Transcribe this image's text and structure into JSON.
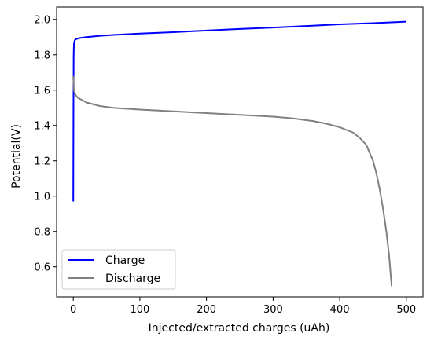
{
  "chart_data": {
    "type": "line",
    "title": "",
    "xlabel": "Injected/extracted charges (uAh)",
    "ylabel": "Potential(V)",
    "xlim": [
      -25,
      525
    ],
    "ylim": [
      0.43,
      2.07
    ],
    "xticks": [
      0,
      100,
      200,
      300,
      400,
      500
    ],
    "yticks": [
      0.6,
      0.8,
      1.0,
      1.2,
      1.4,
      1.6,
      1.8,
      2.0
    ],
    "xtick_labels": [
      "0",
      "100",
      "200",
      "300",
      "400",
      "500"
    ],
    "ytick_labels": [
      "0.6",
      "0.8",
      "1.0",
      "1.2",
      "1.4",
      "1.6",
      "1.8",
      "2.0"
    ],
    "grid": false,
    "legend_position": "lower-left",
    "series": [
      {
        "name": "Charge",
        "color": "#0000ff",
        "x": [
          0,
          0.3,
          0.6,
          1,
          2,
          3,
          5,
          10,
          20,
          40,
          60,
          100,
          150,
          200,
          250,
          300,
          350,
          400,
          450,
          500
        ],
        "y": [
          0.97,
          1.5,
          1.8,
          1.86,
          1.88,
          1.885,
          1.89,
          1.895,
          1.9,
          1.907,
          1.912,
          1.92,
          1.928,
          1.937,
          1.946,
          1.954,
          1.963,
          1.972,
          1.979,
          1.987
        ]
      },
      {
        "name": "Discharge",
        "color": "#808080",
        "x": [
          0,
          1,
          3,
          6,
          10,
          20,
          40,
          60,
          100,
          150,
          200,
          250,
          300,
          330,
          360,
          380,
          400,
          420,
          430,
          440,
          450,
          455,
          460,
          465,
          470,
          474,
          476,
          478
        ],
        "y": [
          1.68,
          1.6,
          1.575,
          1.56,
          1.55,
          1.53,
          1.51,
          1.5,
          1.49,
          1.48,
          1.47,
          1.46,
          1.45,
          1.44,
          1.425,
          1.41,
          1.39,
          1.36,
          1.33,
          1.29,
          1.2,
          1.13,
          1.04,
          0.93,
          0.8,
          0.67,
          0.58,
          0.49
        ]
      }
    ]
  }
}
